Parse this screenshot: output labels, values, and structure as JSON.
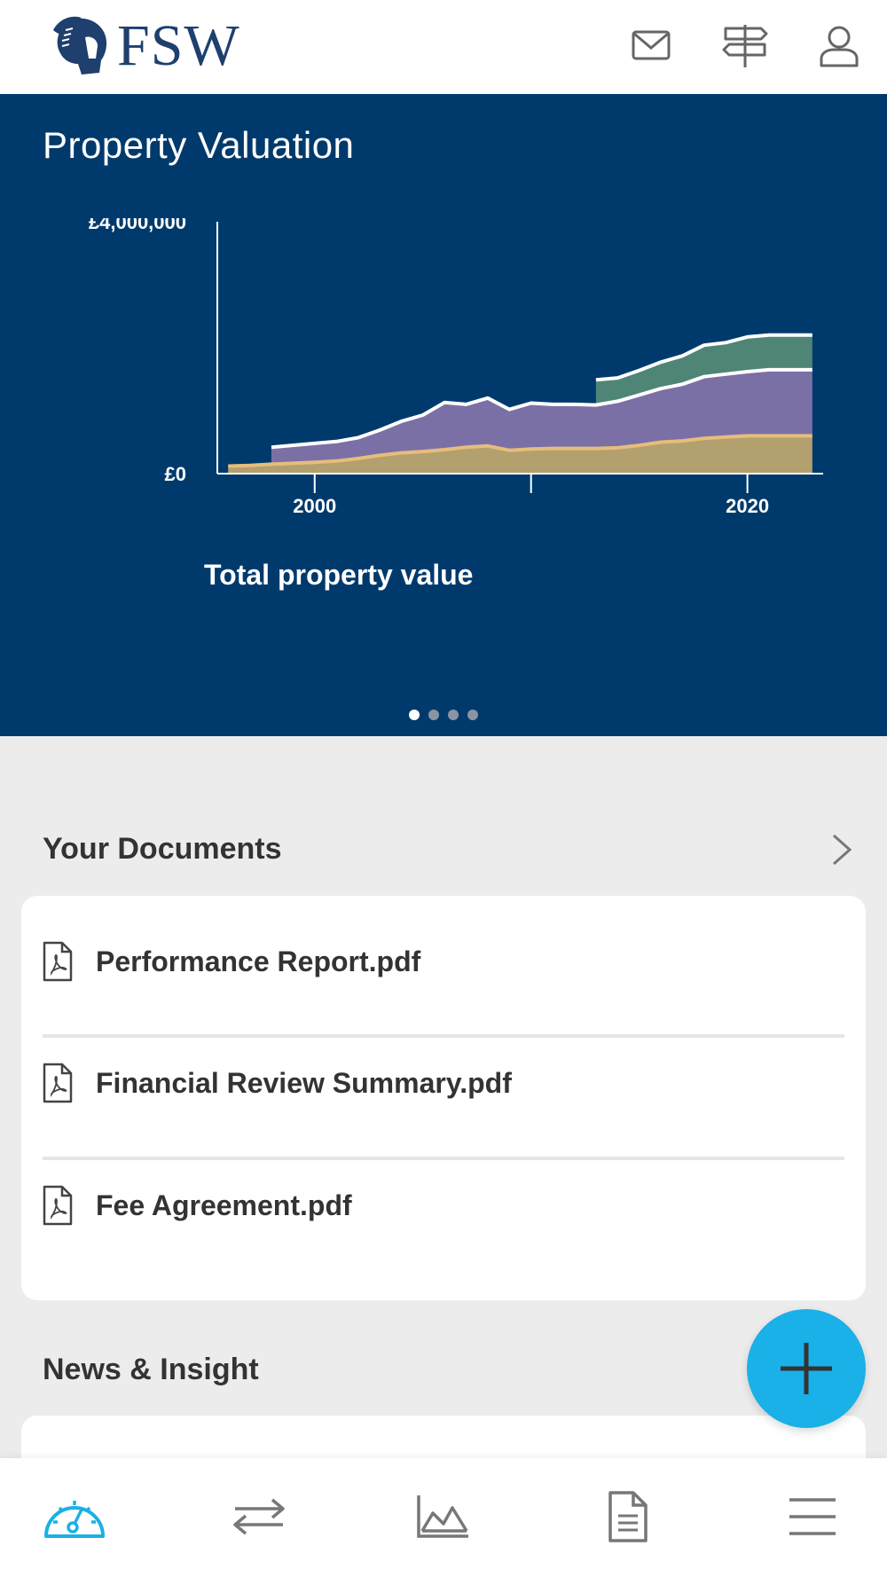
{
  "header": {
    "logo_text": "FSW",
    "icons": [
      "mail-icon",
      "signpost-icon",
      "user-icon"
    ]
  },
  "hero": {
    "title": "Property Valuation",
    "chart_label": "Total property value",
    "carousel_pages": 4,
    "carousel_active": 0
  },
  "chart_data": {
    "type": "area",
    "title": "",
    "xlabel": "",
    "ylabel": "",
    "y_tick_labels": [
      "£4,000,000",
      "£0"
    ],
    "x_tick_labels": [
      "2000",
      "2020"
    ],
    "ylim": [
      0,
      4000000
    ],
    "xlim": [
      1995.5,
      2023.5
    ],
    "stacked": true,
    "x": [
      1996,
      1997,
      1998,
      2000,
      2001,
      2002,
      2003,
      2004,
      2005,
      2006,
      2007,
      2008,
      2009,
      2010,
      2011,
      2012,
      2013,
      2014,
      2015,
      2016,
      2017,
      2018,
      2019,
      2020,
      2021,
      2022,
      2023
    ],
    "series": [
      {
        "color": "#b3a06f",
        "values": [
          120000,
          130000,
          150000,
          180000,
          200000,
          240000,
          290000,
          330000,
          350000,
          380000,
          420000,
          440000,
          370000,
          390000,
          400000,
          400000,
          400000,
          410000,
          450000,
          500000,
          520000,
          560000,
          580000,
          600000,
          600000,
          600000,
          600000
        ]
      },
      {
        "color": "#7b70a6",
        "values": [
          0,
          0,
          270000,
          300000,
          310000,
          330000,
          400000,
          500000,
          580000,
          750000,
          680000,
          760000,
          650000,
          730000,
          700000,
          700000,
          690000,
          740000,
          800000,
          850000,
          900000,
          980000,
          1000000,
          1020000,
          1050000,
          1050000,
          1050000
        ]
      },
      {
        "color": "#4f8577",
        "values": [
          0,
          0,
          0,
          0,
          0,
          0,
          0,
          0,
          0,
          0,
          0,
          0,
          0,
          0,
          0,
          0,
          400000,
          370000,
          390000,
          420000,
          450000,
          500000,
          500000,
          550000,
          550000,
          550000,
          550000
        ]
      }
    ]
  },
  "documents": {
    "title": "Your Documents",
    "items": [
      {
        "name": "Performance Report.pdf"
      },
      {
        "name": "Financial Review Summary.pdf"
      },
      {
        "name": "Fee Agreement.pdf"
      }
    ]
  },
  "news": {
    "title": "News & Insight"
  },
  "fab": {
    "icon": "plus-icon"
  },
  "bottom_nav": {
    "items": [
      {
        "icon": "dashboard-gauge-icon",
        "active": true
      },
      {
        "icon": "transfer-arrows-icon",
        "active": false
      },
      {
        "icon": "area-chart-icon",
        "active": false
      },
      {
        "icon": "document-icon",
        "active": false
      },
      {
        "icon": "menu-icon",
        "active": false
      }
    ]
  },
  "colors": {
    "brand_navy": "#003a6c",
    "accent_blue": "#1ab0e8",
    "logo_blue": "#1f3f6e"
  }
}
